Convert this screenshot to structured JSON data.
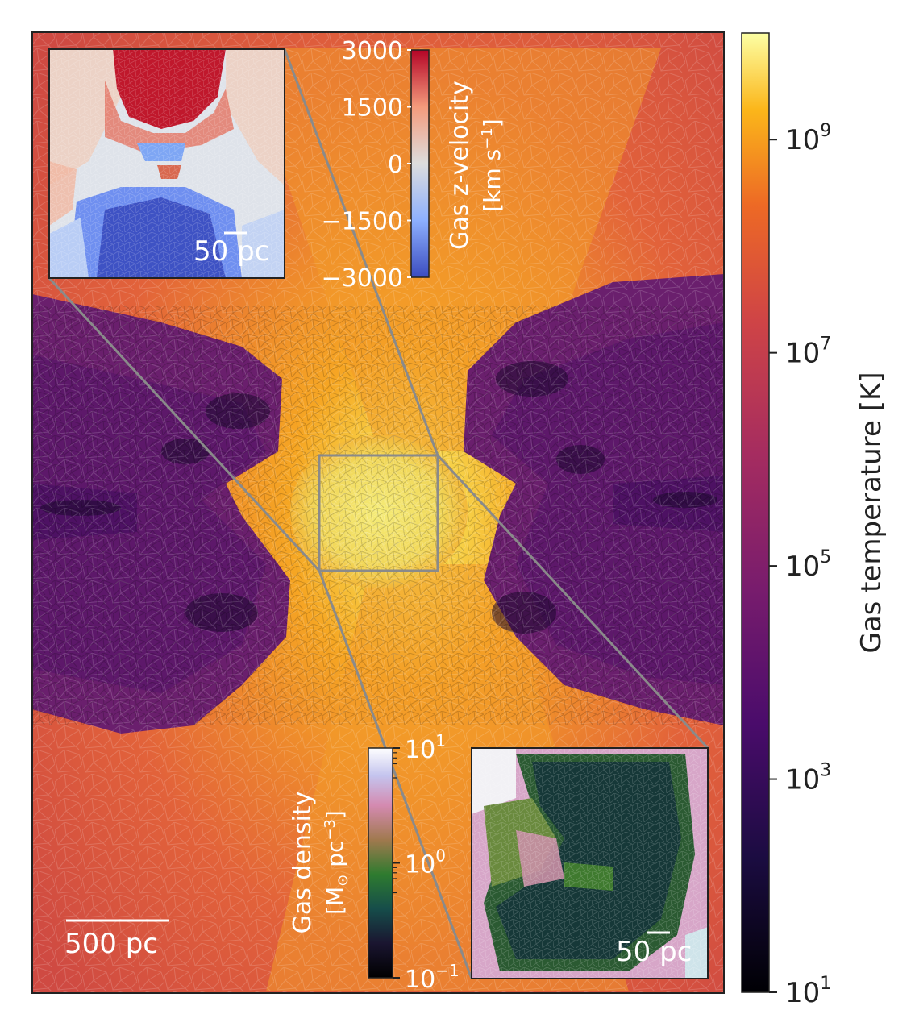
{
  "chart_data": [
    {
      "type": "heatmap",
      "description_role": "main-map",
      "quantity": "gas-temperature",
      "colormap": "inferno",
      "scale": "log",
      "colorbar": {
        "label": "Gas temperature [K]",
        "range": [
          10,
          10000000000
        ],
        "ticks": [
          {
            "base": "10",
            "exp": "9",
            "value": 1000000000
          },
          {
            "base": "10",
            "exp": "7",
            "value": 10000000
          },
          {
            "base": "10",
            "exp": "5",
            "value": 100000
          },
          {
            "base": "10",
            "exp": "3",
            "value": 1000
          },
          {
            "base": "10",
            "exp": "1",
            "value": 10
          }
        ]
      },
      "scalebar": {
        "label": "500 pc",
        "value_pc": 500
      }
    },
    {
      "type": "heatmap",
      "description_role": "inset-top-left",
      "quantity": "gas-z-velocity",
      "colormap": "coolwarm",
      "scale": "linear",
      "colorbar": {
        "label_line1": "Gas z-velocity",
        "label_line2_pre": "[km s",
        "label_line2_sup": "−1",
        "label_line2_post": "]",
        "range": [
          -3000,
          3000
        ],
        "ticks": [
          "3000",
          "1500",
          "0",
          "−1500",
          "−3000"
        ]
      },
      "scalebar": {
        "label": "50 pc",
        "value_pc": 50
      }
    },
    {
      "type": "heatmap",
      "description_role": "inset-bottom-right",
      "quantity": "gas-density",
      "colormap": "cubehelix",
      "scale": "log",
      "colorbar": {
        "label_line1": "Gas density",
        "label_line2_pre": "[M",
        "label_line2_sun": "⊙",
        "label_line2_mid": " pc",
        "label_line2_sup": "−3",
        "label_line2_post": "]",
        "range": [
          0.1,
          10
        ],
        "ticks": [
          {
            "base": "10",
            "exp": "1"
          },
          {
            "base": "10",
            "exp": "0"
          },
          {
            "base": "10",
            "exp": "−1"
          }
        ]
      },
      "scalebar": {
        "label": "50 pc",
        "value_pc": 50
      }
    }
  ],
  "colors": {
    "zoom_lines": "#8a8a8a",
    "frame": "#222222",
    "inset_text": "#ffffff"
  }
}
